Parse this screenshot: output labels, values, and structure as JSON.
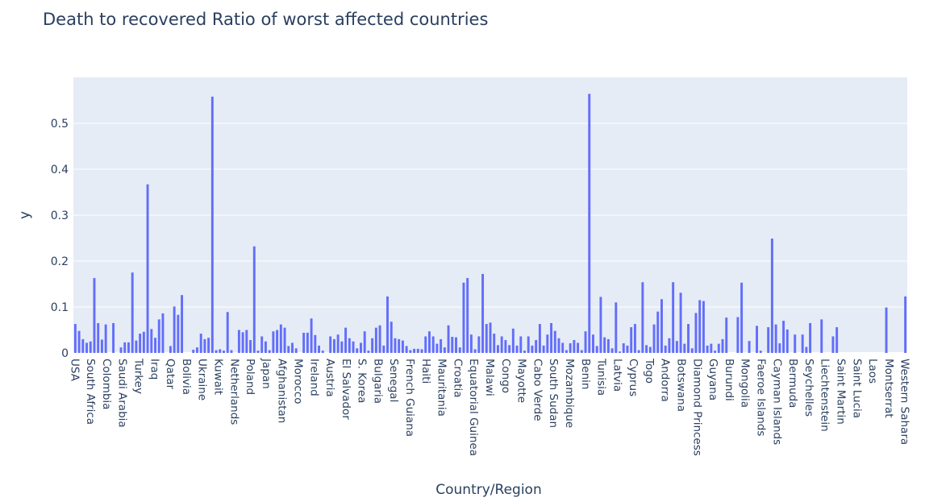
{
  "chart_data": {
    "type": "bar",
    "title": "Death to recovered Ratio of worst affected countries",
    "xlabel": "Country/Region",
    "ylabel": "y",
    "ylim": [
      0,
      0.6
    ],
    "yticks": [
      0,
      0.1,
      0.2,
      0.3,
      0.4,
      0.5
    ],
    "ytick_labels": [
      "0",
      "0.1",
      "0.2",
      "0.3",
      "0.4",
      "0.5"
    ],
    "grid": true,
    "bar_color": "#636efa",
    "plot_bgcolor": "#e5ecf6",
    "visible_tick_labels": [
      "USA",
      "South Africa",
      "Colombia",
      "Saudi Arabia",
      "Turkey",
      "Iraq",
      "Qatar",
      "Bolivia",
      "Ukraine",
      "Kuwait",
      "Netherlands",
      "Poland",
      "Japan",
      "Afghanistan",
      "Morocco",
      "Ireland",
      "Austria",
      "El Salvador",
      "S. Korea",
      "Bulgaria",
      "Senegal",
      "French Guiana",
      "Haiti",
      "Mauritania",
      "Croatia",
      "Equatorial Guinea",
      "Malawi",
      "Congo",
      "Mayotte",
      "Cabo Verde",
      "South Sudan",
      "Mozambique",
      "Benin",
      "Tunisia",
      "Latvia",
      "Cyprus",
      "Togo",
      "Andorra",
      "Botswana",
      "Diamond Princess",
      "Guyana",
      "Burundi",
      "Mongolia",
      "Faeroe Islands",
      "Cayman Islands",
      "Bermuda",
      "Seychelles",
      "Liechtenstein",
      "Saint Martin",
      "Saint Lucia",
      "Laos",
      "Montserrat",
      "Western Sahara"
    ],
    "values": [
      0.063,
      0.048,
      0.03,
      0.022,
      0.025,
      0.163,
      0.065,
      0.029,
      0.062,
      0.0,
      0.065,
      0.0,
      0.012,
      0.023,
      0.023,
      0.175,
      0.027,
      0.042,
      0.046,
      0.367,
      0.052,
      0.033,
      0.073,
      0.086,
      0.0,
      0.015,
      0.101,
      0.083,
      0.126,
      0.0,
      0.0,
      0.007,
      0.012,
      0.042,
      0.03,
      0.033,
      0.558,
      0.006,
      0.008,
      0.005,
      0.089,
      0.006,
      0.0,
      0.05,
      0.045,
      0.05,
      0.028,
      0.232,
      0.005,
      0.036,
      0.025,
      0.006,
      0.047,
      0.05,
      0.062,
      0.055,
      0.015,
      0.022,
      0.01,
      0.0,
      0.044,
      0.044,
      0.075,
      0.039,
      0.016,
      0.005,
      0.0,
      0.036,
      0.03,
      0.04,
      0.025,
      0.055,
      0.032,
      0.025,
      0.01,
      0.022,
      0.047,
      0.005,
      0.032,
      0.055,
      0.06,
      0.016,
      0.123,
      0.068,
      0.032,
      0.03,
      0.027,
      0.015,
      0.006,
      0.009,
      0.009,
      0.008,
      0.036,
      0.047,
      0.036,
      0.02,
      0.03,
      0.012,
      0.06,
      0.035,
      0.034,
      0.012,
      0.153,
      0.163,
      0.04,
      0.008,
      0.036,
      0.172,
      0.063,
      0.066,
      0.042,
      0.017,
      0.036,
      0.028,
      0.017,
      0.053,
      0.016,
      0.036,
      0.005,
      0.036,
      0.016,
      0.028,
      0.063,
      0.016,
      0.04,
      0.065,
      0.048,
      0.032,
      0.022,
      0.006,
      0.021,
      0.028,
      0.022,
      0.006,
      0.047,
      0.564,
      0.04,
      0.015,
      0.122,
      0.034,
      0.03,
      0.01,
      0.11,
      0.003,
      0.021,
      0.016,
      0.056,
      0.063,
      0.006,
      0.154,
      0.017,
      0.013,
      0.062,
      0.09,
      0.117,
      0.016,
      0.032,
      0.154,
      0.026,
      0.131,
      0.02,
      0.063,
      0.01,
      0.087,
      0.115,
      0.113,
      0.016,
      0.02,
      0.005,
      0.02,
      0.03,
      0.077,
      0.0,
      0.0,
      0.078,
      0.153,
      0.0,
      0.026,
      0.0,
      0.059,
      0.005,
      0.0,
      0.056,
      0.249,
      0.062,
      0.021,
      0.07,
      0.051,
      0.0,
      0.04,
      0.0,
      0.04,
      0.013,
      0.065,
      0.0,
      0.0,
      0.073,
      0.0,
      0.0,
      0.036,
      0.056,
      0.0,
      0.0,
      0.0,
      0.0,
      0.0,
      0.0,
      0.0,
      0.0,
      0.0,
      0.0,
      0.0,
      0.0,
      0.099,
      0.0,
      0.0,
      0.0,
      0.0,
      0.123
    ]
  }
}
